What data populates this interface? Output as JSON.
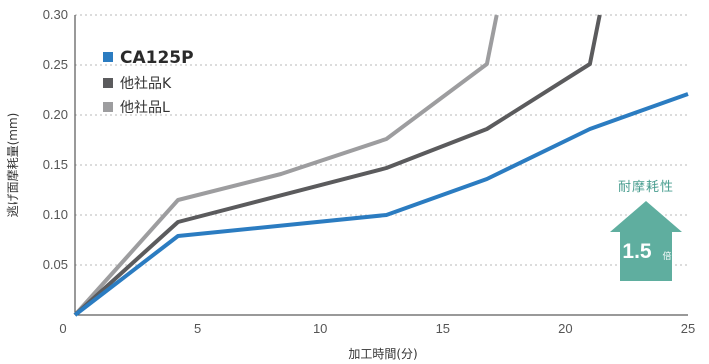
{
  "chart_data": {
    "type": "line",
    "xlabel": "加工時間(分)",
    "ylabel": "逃げ面摩耗量(mm)",
    "xlim": [
      0,
      25
    ],
    "ylim": [
      0,
      0.3
    ],
    "xticks": [
      "0",
      "5",
      "10",
      "15",
      "20",
      "25"
    ],
    "yticks": [
      "0.05",
      "0.10",
      "0.15",
      "0.20",
      "0.25",
      "0.30"
    ],
    "grid": "horizontal dotted",
    "legend_position": "top-left",
    "series": [
      {
        "name": "CA125P",
        "color": "#2b7cc1",
        "x": [
          0,
          4.2,
          12.7,
          16.8,
          21.0,
          25.0
        ],
        "y": [
          0,
          0.079,
          0.1,
          0.136,
          0.186,
          0.221
        ]
      },
      {
        "name": "他社品K",
        "color": "#5b5b5d",
        "x": [
          0,
          4.2,
          12.7,
          16.8,
          21.0,
          21.4
        ],
        "y": [
          0,
          0.093,
          0.147,
          0.186,
          0.251,
          0.3
        ]
      },
      {
        "name": "他社品L",
        "color": "#9d9d9f",
        "x": [
          0,
          4.2,
          8.4,
          12.7,
          16.8,
          17.2
        ],
        "y": [
          0,
          0.115,
          0.141,
          0.176,
          0.251,
          0.3
        ]
      }
    ]
  },
  "badge": {
    "title": "耐摩耗性",
    "value": "1.5",
    "unit": "倍",
    "color": "#5fae9f"
  }
}
